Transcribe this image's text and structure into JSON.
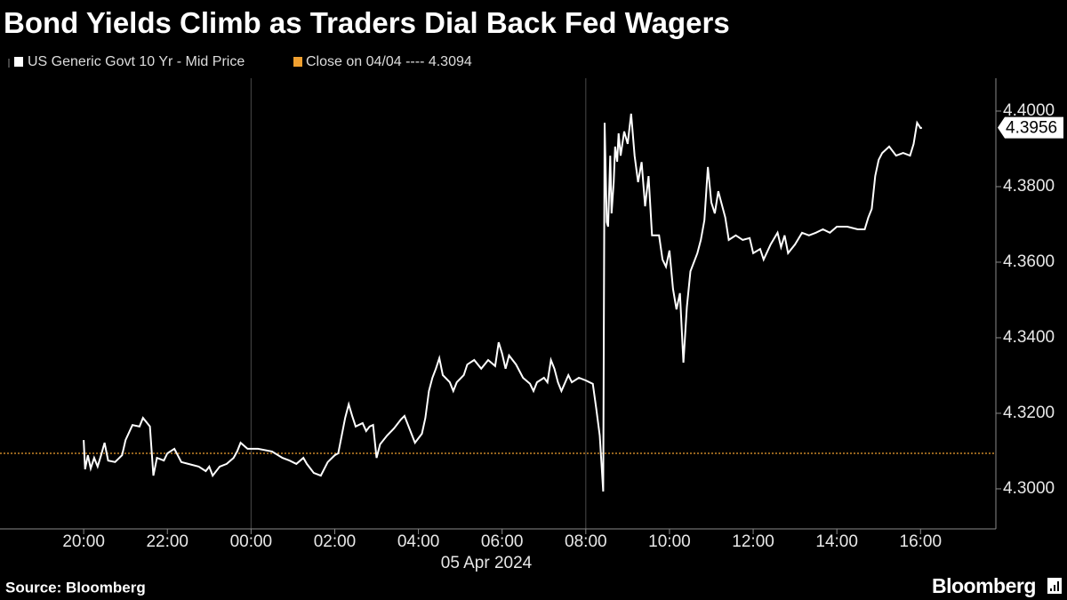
{
  "chart_data": {
    "type": "line",
    "title": "Bond Yields Climb as Traders Dial Back Fed Wagers",
    "source": "Source: Bloomberg",
    "logo": "Bloomberg",
    "date_label": "05 Apr 2024",
    "x": [
      "2024-04-04T20:00",
      "2024-04-04T20:02",
      "2024-04-04T20:06",
      "2024-04-04T20:10",
      "2024-04-04T20:15",
      "2024-04-04T20:20",
      "2024-04-04T20:25",
      "2024-04-04T20:30",
      "2024-04-04T20:35",
      "2024-04-04T20:45",
      "2024-04-04T20:55",
      "2024-04-04T21:00",
      "2024-04-04T21:10",
      "2024-04-04T21:20",
      "2024-04-04T21:25",
      "2024-04-04T21:35",
      "2024-04-04T21:40",
      "2024-04-04T21:45",
      "2024-04-04T21:55",
      "2024-04-04T22:00",
      "2024-04-04T22:10",
      "2024-04-04T22:20",
      "2024-04-04T22:30",
      "2024-04-04T22:45",
      "2024-04-04T22:55",
      "2024-04-04T23:00",
      "2024-04-04T23:05",
      "2024-04-04T23:15",
      "2024-04-04T23:25",
      "2024-04-04T23:35",
      "2024-04-04T23:40",
      "2024-04-04T23:45",
      "2024-04-04T23:55",
      "2024-04-05T00:10",
      "2024-04-05T00:30",
      "2024-04-05T00:45",
      "2024-04-05T00:55",
      "2024-04-05T01:05",
      "2024-04-05T01:15",
      "2024-04-05T01:20",
      "2024-04-05T01:30",
      "2024-04-05T01:40",
      "2024-04-05T01:50",
      "2024-04-05T02:00",
      "2024-04-05T02:05",
      "2024-04-05T02:10",
      "2024-04-05T02:15",
      "2024-04-05T02:20",
      "2024-04-05T02:25",
      "2024-04-05T02:30",
      "2024-04-05T02:40",
      "2024-04-05T02:45",
      "2024-04-05T02:50",
      "2024-04-05T02:55",
      "2024-04-05T03:00",
      "2024-04-05T03:05",
      "2024-04-05T03:15",
      "2024-04-05T03:25",
      "2024-04-05T03:35",
      "2024-04-05T03:40",
      "2024-04-05T03:50",
      "2024-04-05T03:55",
      "2024-04-05T04:05",
      "2024-04-05T04:10",
      "2024-04-05T04:15",
      "2024-04-05T04:20",
      "2024-04-05T04:25",
      "2024-04-05T04:30",
      "2024-04-05T04:35",
      "2024-04-05T04:45",
      "2024-04-05T04:50",
      "2024-04-05T04:55",
      "2024-04-05T05:05",
      "2024-04-05T05:10",
      "2024-04-05T05:20",
      "2024-04-05T05:30",
      "2024-04-05T05:40",
      "2024-04-05T05:50",
      "2024-04-05T05:55",
      "2024-04-05T06:00",
      "2024-04-05T06:05",
      "2024-04-05T06:10",
      "2024-04-05T06:20",
      "2024-04-05T06:30",
      "2024-04-05T06:40",
      "2024-04-05T06:45",
      "2024-04-05T06:50",
      "2024-04-05T07:00",
      "2024-04-05T07:05",
      "2024-04-05T07:10",
      "2024-04-05T07:15",
      "2024-04-05T07:20",
      "2024-04-05T07:25",
      "2024-04-05T07:35",
      "2024-04-05T07:40",
      "2024-04-05T07:50",
      "2024-04-05T08:00",
      "2024-04-05T08:10",
      "2024-04-05T08:15",
      "2024-04-05T08:20",
      "2024-04-05T08:25",
      "2024-04-05T08:27",
      "2024-04-05T08:30",
      "2024-04-05T08:32",
      "2024-04-05T08:35",
      "2024-04-05T08:37",
      "2024-04-05T08:40",
      "2024-04-05T08:42",
      "2024-04-05T08:45",
      "2024-04-05T08:47",
      "2024-04-05T08:50",
      "2024-04-05T08:55",
      "2024-04-05T09:00",
      "2024-04-05T09:05",
      "2024-04-05T09:10",
      "2024-04-05T09:15",
      "2024-04-05T09:20",
      "2024-04-05T09:25",
      "2024-04-05T09:30",
      "2024-04-05T09:35",
      "2024-04-05T09:45",
      "2024-04-05T09:50",
      "2024-04-05T09:55",
      "2024-04-05T10:00",
      "2024-04-05T10:05",
      "2024-04-05T10:10",
      "2024-04-05T10:15",
      "2024-04-05T10:20",
      "2024-04-05T10:25",
      "2024-04-05T10:30",
      "2024-04-05T10:40",
      "2024-04-05T10:45",
      "2024-04-05T10:50",
      "2024-04-05T10:55",
      "2024-04-05T11:00",
      "2024-04-05T11:05",
      "2024-04-05T11:10",
      "2024-04-05T11:20",
      "2024-04-05T11:25",
      "2024-04-05T11:35",
      "2024-04-05T11:45",
      "2024-04-05T11:55",
      "2024-04-05T12:00",
      "2024-04-05T12:10",
      "2024-04-05T12:15",
      "2024-04-05T12:25",
      "2024-04-05T12:35",
      "2024-04-05T12:40",
      "2024-04-05T12:45",
      "2024-04-05T12:50",
      "2024-04-05T13:00",
      "2024-04-05T13:10",
      "2024-04-05T13:20",
      "2024-04-05T13:30",
      "2024-04-05T13:40",
      "2024-04-05T13:50",
      "2024-04-05T14:00",
      "2024-04-05T14:15",
      "2024-04-05T14:30",
      "2024-04-05T14:40",
      "2024-04-05T14:45",
      "2024-04-05T14:50",
      "2024-04-05T14:55",
      "2024-04-05T15:00",
      "2024-04-05T15:05",
      "2024-04-05T15:15",
      "2024-04-05T15:25",
      "2024-04-05T15:35",
      "2024-04-05T15:45",
      "2024-04-05T15:50",
      "2024-04-05T15:55",
      "2024-04-05T16:00",
      "2024-04-05T16:02"
    ],
    "series": [
      {
        "name": "US Generic Govt 10 Yr - Mid Price",
        "color": "#ffffff",
        "values": [
          4.3129,
          4.3052,
          4.3089,
          4.3054,
          4.3082,
          4.3059,
          4.3089,
          4.3122,
          4.3075,
          4.3071,
          4.3089,
          4.3129,
          4.3169,
          4.3165,
          4.3188,
          4.3165,
          4.3035,
          4.3082,
          4.3075,
          4.3094,
          4.3106,
          4.3071,
          4.3066,
          4.3059,
          4.3047,
          4.3059,
          4.3035,
          4.3059,
          4.3066,
          4.3082,
          4.3099,
          4.3122,
          4.3106,
          4.3106,
          4.3099,
          4.3082,
          4.3075,
          4.3066,
          4.3082,
          4.3066,
          4.3042,
          4.3035,
          4.3071,
          4.3089,
          4.3094,
          4.3141,
          4.3188,
          4.3224,
          4.3193,
          4.3165,
          4.3174,
          4.3153,
          4.3165,
          4.3169,
          4.3082,
          4.3118,
          4.3141,
          4.316,
          4.3184,
          4.3193,
          4.3146,
          4.3122,
          4.3146,
          4.3188,
          4.3259,
          4.3294,
          4.3318,
          4.3346,
          4.3301,
          4.3282,
          4.3259,
          4.3282,
          4.3301,
          4.3329,
          4.3341,
          4.3318,
          4.3341,
          4.3325,
          4.3388,
          4.3358,
          4.3318,
          4.3353,
          4.3329,
          4.3294,
          4.3278,
          4.3259,
          4.3282,
          4.3294,
          4.3282,
          4.3341,
          4.3318,
          4.3282,
          4.3259,
          4.3301,
          4.3282,
          4.3294,
          4.3287,
          4.3278,
          4.3212,
          4.3141,
          4.2993,
          4.3969,
          4.3706,
          4.3694,
          4.3882,
          4.3729,
          4.3812,
          4.3906,
          4.3866,
          4.3941,
          4.3882,
          4.3946,
          4.3913,
          4.3993,
          4.3882,
          4.3812,
          4.3865,
          4.3748,
          4.3828,
          4.3671,
          4.3671,
          4.3607,
          4.3588,
          4.3631,
          4.3529,
          4.3475,
          4.3518,
          4.3334,
          4.3482,
          4.3576,
          4.3624,
          4.3659,
          4.3711,
          4.3852,
          4.3758,
          4.3729,
          4.3788,
          4.3718,
          4.3659,
          4.3671,
          4.3659,
          4.3664,
          4.3624,
          4.3635,
          4.3607,
          4.3647,
          4.3678,
          4.364,
          4.3671,
          4.3624,
          4.3647,
          4.3678,
          4.3671,
          4.3678,
          4.3687,
          4.3678,
          4.3694,
          4.3694,
          4.3687,
          4.3687,
          4.3718,
          4.3741,
          4.3828,
          4.3871,
          4.3889,
          4.3906,
          4.3882,
          4.3889,
          4.3882,
          4.3913,
          4.3969,
          4.3955,
          4.3956
        ]
      }
    ],
    "reference_line": {
      "name": "Close on 04/04 ---- 4.3094",
      "value": 4.3094,
      "color": "#f0a030"
    },
    "last_value": 4.3956,
    "xlim": [
      "2024-04-04T18:00",
      "2024-04-05T17:48"
    ],
    "xticks": [
      {
        "value": "2024-04-04T20:00",
        "label": "20:00"
      },
      {
        "value": "2024-04-04T22:00",
        "label": "22:00"
      },
      {
        "value": "2024-04-05T00:00",
        "label": "00:00"
      },
      {
        "value": "2024-04-05T02:00",
        "label": "02:00"
      },
      {
        "value": "2024-04-05T04:00",
        "label": "04:00"
      },
      {
        "value": "2024-04-05T06:00",
        "label": "06:00"
      },
      {
        "value": "2024-04-05T08:00",
        "label": "08:00"
      },
      {
        "value": "2024-04-05T10:00",
        "label": "10:00"
      },
      {
        "value": "2024-04-05T12:00",
        "label": "12:00"
      },
      {
        "value": "2024-04-05T14:00",
        "label": "14:00"
      },
      {
        "value": "2024-04-05T16:00",
        "label": "16:00"
      }
    ],
    "xgrid": [
      "2024-04-05T00:00",
      "2024-04-05T08:00"
    ],
    "ylim": [
      4.2894,
      4.4087
    ],
    "yticks": [
      {
        "value": 4.3,
        "label": "4.3000"
      },
      {
        "value": 4.32,
        "label": "4.3200"
      },
      {
        "value": 4.34,
        "label": "4.3400"
      },
      {
        "value": 4.36,
        "label": "4.3600"
      },
      {
        "value": 4.38,
        "label": "4.3800"
      },
      {
        "value": 4.4,
        "label": "4.4000"
      }
    ],
    "y_axis_side": "right"
  }
}
